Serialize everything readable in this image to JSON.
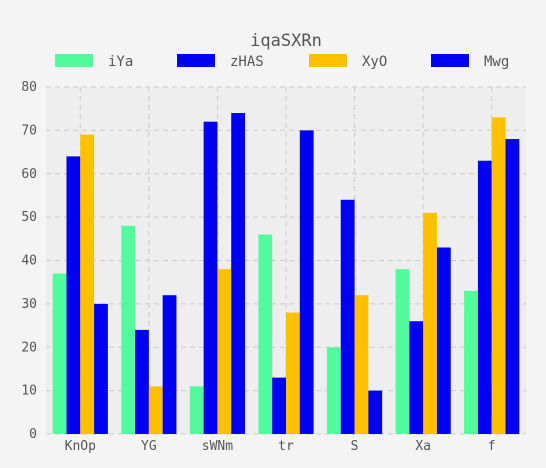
{
  "chart_data": {
    "type": "bar",
    "title": "iqaSXRn",
    "xlabel": "",
    "ylabel": "",
    "categories": [
      "KnOp",
      "YG",
      "sWNm",
      "tr",
      "S",
      "Xa",
      "f"
    ],
    "series": [
      {
        "name": "iYa",
        "color": "#52fc9c",
        "values": [
          37,
          48,
          11,
          46,
          20,
          38,
          33
        ]
      },
      {
        "name": "zHAS",
        "color": "#0000f0",
        "values": [
          64,
          24,
          72,
          13,
          54,
          26,
          63
        ]
      },
      {
        "name": "XyO",
        "color": "#ffc000",
        "values": [
          69,
          11,
          38,
          28,
          32,
          51,
          73
        ]
      },
      {
        "name": "Mwg",
        "color": "#0000f0",
        "values": [
          30,
          32,
          74,
          70,
          10,
          43,
          68
        ]
      }
    ],
    "ylim": [
      0,
      80
    ],
    "yticks": [
      0,
      10,
      20,
      30,
      40,
      50,
      60,
      70,
      80
    ],
    "grid": true,
    "legend_position": "top"
  }
}
